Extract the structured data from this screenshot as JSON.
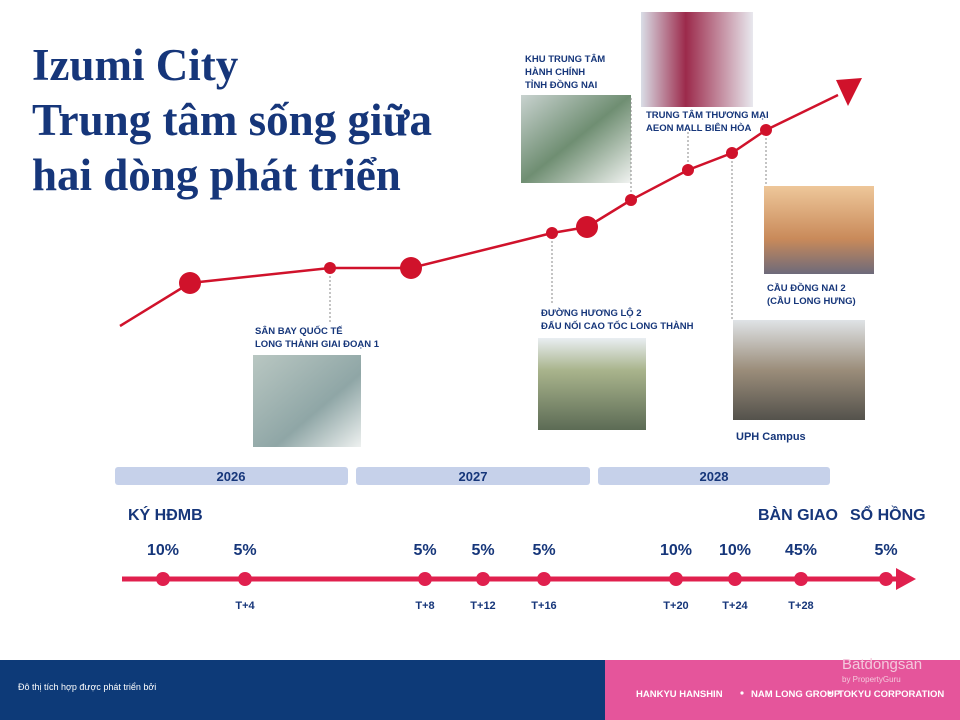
{
  "header": {
    "title_lines": [
      "Izumi City",
      "Trung tâm sống giữa",
      "hai dòng phát triển"
    ]
  },
  "milestones": [
    {
      "lines": [
        "SÂN BAY QUỐC TẾ",
        "LONG THÀNH GIAI ĐOẠN 1"
      ]
    },
    {
      "lines": [
        "ĐƯỜNG HƯƠNG LỘ 2",
        "ĐẤU NỐI CAO TỐC LONG THÀNH"
      ]
    },
    {
      "lines": [
        "KHU TRUNG TÂM",
        "HÀNH CHÍNH",
        "TỈNH ĐỒNG NAI"
      ]
    },
    {
      "lines": [
        "TRUNG TÂM THƯƠNG MẠI",
        "AEON MALL BIÊN HÒA"
      ]
    },
    {
      "lines": [
        "CẦU ĐỒNG NAI 2",
        "(CẦU LONG HƯNG)"
      ]
    },
    {
      "lines": [
        "UPH Campus"
      ]
    }
  ],
  "years": [
    "2026",
    "2027",
    "2028"
  ],
  "stages": [
    "KÝ HĐMB",
    "BÀN GIAO",
    "SỔ HỒNG"
  ],
  "payments": [
    {
      "percent": "10%"
    },
    {
      "percent": "5%",
      "term": "T+4"
    },
    {
      "percent": "5%",
      "term": "T+8"
    },
    {
      "percent": "5%",
      "term": "T+12"
    },
    {
      "percent": "5%",
      "term": "T+16"
    },
    {
      "percent": "10%",
      "term": "T+20"
    },
    {
      "percent": "10%",
      "term": "T+24"
    },
    {
      "percent": "45%",
      "term": "T+28"
    },
    {
      "percent": "5%"
    }
  ],
  "footer": {
    "note": "Đô thị tích hợp được phát triển bởi",
    "developers": [
      "HANKYU HANSHIN",
      "NAM LONG GROUP",
      "TOKYU CORPORATION"
    ],
    "brand": "Batdongsan",
    "brand_sub": "by PropertyGuru"
  }
}
